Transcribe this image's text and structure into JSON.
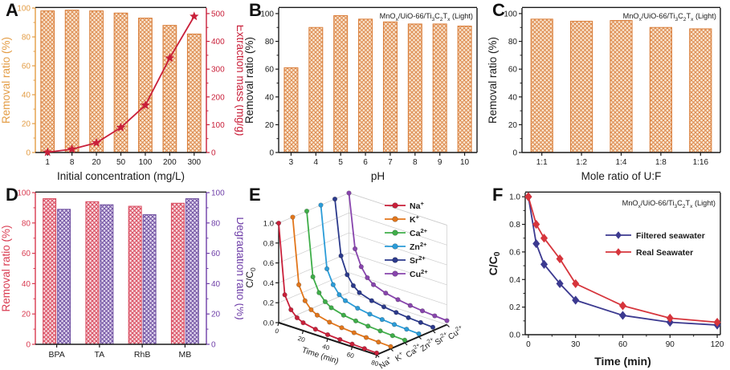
{
  "figure_title": "",
  "catalyst_label": "MnO~x~/UiO-66/Ti~3~C~2~T~x~ (Light)",
  "chart_data": [
    {
      "panel": "A",
      "type": "bar-line-dual",
      "categories": [
        "1",
        "8",
        "20",
        "50",
        "100",
        "200",
        "300"
      ],
      "bar_values": [
        98,
        98.5,
        98,
        96.5,
        93,
        88,
        82
      ],
      "line_values": [
        1,
        12,
        35,
        90,
        170,
        340,
        490
      ],
      "xlabel": "Initial concentration (mg/L)",
      "ylabel_left": "Removal ratio (%)",
      "ylabel_right": "Extraction mass (mg/g)",
      "yticks_left": [
        0,
        20,
        40,
        60,
        80,
        100
      ],
      "yticks_right": [
        0,
        100,
        200,
        300,
        400,
        500
      ],
      "ylim_left": [
        0,
        100
      ],
      "ylim_right": [
        0,
        520
      ],
      "colors": {
        "bar_edge": "#d97b35",
        "bar_hatch": "#dd8a4e",
        "bar_bg": "#fae9d4",
        "axis_left": "#e39c44",
        "axis_right": "#c9203a",
        "line": "#c9203a"
      },
      "marker": "star"
    },
    {
      "panel": "B",
      "type": "bar",
      "categories": [
        "3",
        "4",
        "5",
        "6",
        "7",
        "8",
        "9",
        "10"
      ],
      "values": [
        61,
        90,
        98.5,
        96,
        94,
        92.5,
        92.5,
        91
      ],
      "xlabel": "pH",
      "ylabel": "Removal ratio (%)",
      "yticks": [
        0,
        20,
        40,
        60,
        80,
        100
      ],
      "ylim": [
        0,
        104
      ],
      "annotation": "MnO~x~/UiO-66/Ti~3~C~2~T~x~ (Light)",
      "colors": {
        "bar_edge": "#d97b35",
        "bar_hatch": "#dd8a4e",
        "bar_bg": "#fae9d4",
        "axis": "#1a1a1a"
      }
    },
    {
      "panel": "C",
      "type": "bar",
      "categories": [
        "1:1",
        "1:2",
        "1:4",
        "1:8",
        "1:16"
      ],
      "values": [
        96,
        94.5,
        95,
        90,
        89
      ],
      "xlabel": "Mole ratio of U:F",
      "ylabel": "Removal ratio (%)",
      "yticks": [
        0,
        20,
        40,
        60,
        80,
        100
      ],
      "ylim": [
        0,
        104
      ],
      "annotation": "MnO~x~/UiO-66/Ti~3~C~2~T~x~ (Light)",
      "colors": {
        "bar_edge": "#d97b35",
        "bar_hatch": "#dd8a4e",
        "bar_bg": "#fae9d4",
        "axis": "#1a1a1a"
      }
    },
    {
      "panel": "D",
      "type": "grouped-bar-dual",
      "categories": [
        "BPA",
        "TA",
        "RhB",
        "MB"
      ],
      "series": [
        {
          "name": "Removal ratio",
          "values": [
            96,
            94,
            91,
            93
          ],
          "edge": "#d94a5e",
          "hatch": "#d94a5e",
          "bg": "#f8dde2"
        },
        {
          "name": "Degradation ratio",
          "values": [
            89,
            92,
            85.5,
            96
          ],
          "edge": "#6f4fa0",
          "hatch": "#6f4fa0",
          "bg": "#e2d8ef"
        }
      ],
      "ylabel_left": "Removal ratio (%)",
      "ylabel_right": "Degradation ratio (%)",
      "yticks": [
        0,
        20,
        40,
        60,
        80,
        100
      ],
      "ylim": [
        0,
        100
      ],
      "colors": {
        "axis_left": "#d93a50",
        "axis_right": "#6f3fa8"
      }
    },
    {
      "panel": "E",
      "type": "line3d",
      "zlabel": "C/C~0~",
      "xlabel": "Time (min)",
      "xticks": [
        "0",
        "20",
        "40",
        "60",
        "80"
      ],
      "zticks": [
        "0.0",
        "0.2",
        "0.4",
        "0.6",
        "0.8",
        "1.0"
      ],
      "times": [
        0,
        5,
        10,
        15,
        20,
        30,
        40,
        50,
        60,
        70,
        80
      ],
      "series": [
        {
          "name": "Na^+^",
          "color": "#c9203a",
          "values": [
            1.0,
            0.3,
            0.17,
            0.11,
            0.08,
            0.055,
            0.04,
            0.032,
            0.027,
            0.022,
            0.018
          ]
        },
        {
          "name": "K^+^",
          "color": "#e2761b",
          "values": [
            1.0,
            0.34,
            0.2,
            0.13,
            0.095,
            0.065,
            0.05,
            0.04,
            0.032,
            0.027,
            0.022
          ]
        },
        {
          "name": "Ca^2+^",
          "color": "#3fae49",
          "values": [
            1.0,
            0.36,
            0.22,
            0.15,
            0.11,
            0.075,
            0.058,
            0.046,
            0.038,
            0.031,
            0.026
          ]
        },
        {
          "name": "Zn^2+^",
          "color": "#2b9cd8",
          "values": [
            1.0,
            0.38,
            0.24,
            0.16,
            0.12,
            0.085,
            0.065,
            0.052,
            0.042,
            0.035,
            0.029
          ]
        },
        {
          "name": "Sr^2+^",
          "color": "#2c3a8c",
          "values": [
            1.0,
            0.45,
            0.28,
            0.19,
            0.14,
            0.1,
            0.078,
            0.062,
            0.05,
            0.042,
            0.035
          ]
        },
        {
          "name": "Cu^2+^",
          "color": "#8845ad",
          "values": [
            1.0,
            0.46,
            0.3,
            0.21,
            0.16,
            0.115,
            0.09,
            0.072,
            0.058,
            0.048,
            0.04
          ]
        }
      ]
    },
    {
      "panel": "F",
      "type": "line",
      "x": [
        0,
        5,
        10,
        20,
        30,
        60,
        90,
        120
      ],
      "series": [
        {
          "name": "Filtered seawater",
          "color": "#3c3a90",
          "values": [
            1.0,
            0.66,
            0.51,
            0.37,
            0.25,
            0.14,
            0.09,
            0.07
          ]
        },
        {
          "name": "Real Seawater",
          "color": "#d6353c",
          "values": [
            1.0,
            0.8,
            0.7,
            0.55,
            0.37,
            0.21,
            0.12,
            0.09
          ]
        }
      ],
      "xlabel": "Time (min)",
      "ylabel": "C/C~0~",
      "xticks": [
        0,
        30,
        60,
        90,
        120
      ],
      "yticks": [
        "0.0",
        "0.2",
        "0.4",
        "0.6",
        "0.8",
        "1.0"
      ],
      "xlim": [
        -2,
        122
      ],
      "ylim": [
        0,
        1.03
      ],
      "annotation": "MnO~x~/UiO-66/Ti~3~C~2~T~x~ (Light)",
      "marker": "diamond",
      "legend_position": "center-right"
    }
  ]
}
